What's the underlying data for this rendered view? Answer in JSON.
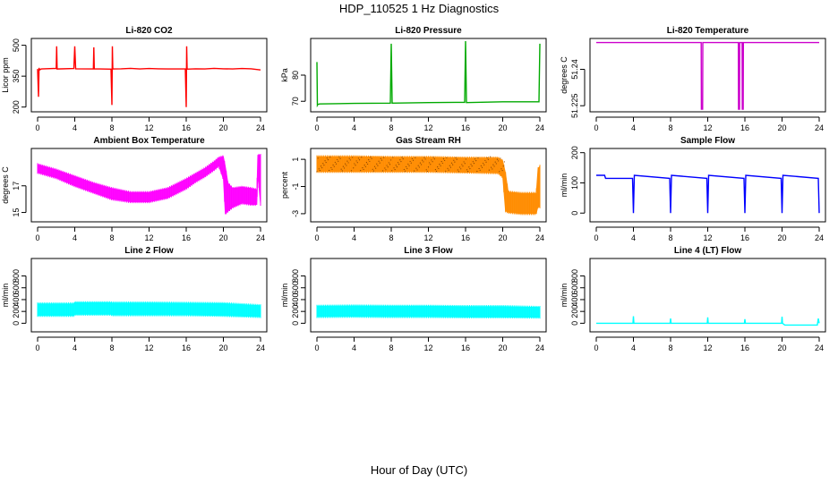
{
  "figure": {
    "title": "HDP_110525  1 Hz Diagnostics",
    "xlabel": "Hour of Day (UTC)"
  },
  "chart_data": [
    {
      "type": "line",
      "title": "Li-820 CO2",
      "xlabel": "",
      "ylabel": "Licor ppm",
      "color": "#ff0000",
      "xlim": [
        0,
        24
      ],
      "xticks": [
        0,
        4,
        8,
        12,
        16,
        20,
        24
      ],
      "ylim": [
        190,
        520
      ],
      "yticks": [
        200,
        350,
        500
      ],
      "series": [
        {
          "name": "CO2",
          "x": [
            0,
            0.1,
            0.15,
            0.2,
            0.4,
            2,
            2.05,
            2.1,
            3.9,
            4,
            4.1,
            6,
            6.05,
            6.1,
            7.9,
            8,
            8.05,
            8.1,
            9,
            10,
            11,
            12,
            13,
            14,
            15.9,
            16,
            16.05,
            16.1,
            17,
            18,
            19,
            20,
            21,
            22,
            23,
            24
          ],
          "y": [
            385,
            250,
            390,
            380,
            385,
            388,
            495,
            385,
            387,
            495,
            386,
            385,
            490,
            386,
            384,
            210,
            495,
            385,
            386,
            388,
            385,
            387,
            386,
            385,
            386,
            200,
            495,
            384,
            386,
            385,
            388,
            386,
            385,
            387,
            386,
            380
          ]
        }
      ]
    },
    {
      "type": "line",
      "title": "Li-820 Pressure",
      "xlabel": "",
      "ylabel": "kPa",
      "color": "#00aa00",
      "xlim": [
        0,
        24
      ],
      "xticks": [
        0,
        4,
        8,
        12,
        16,
        20,
        24
      ],
      "ylim": [
        67,
        93
      ],
      "yticks": [
        70,
        80
      ],
      "series": [
        {
          "name": "Pressure",
          "x": [
            0,
            0.05,
            0.1,
            0.3,
            4,
            7.9,
            8,
            8.1,
            12,
            15.9,
            16,
            16.1,
            20,
            23.9,
            24
          ],
          "y": [
            85,
            68.5,
            68.8,
            69,
            69.2,
            69.3,
            92,
            69.3,
            69.5,
            69.6,
            93,
            69.5,
            69.8,
            69.8,
            92
          ]
        }
      ]
    },
    {
      "type": "line",
      "title": "Li-820 Temperature",
      "xlabel": "",
      "ylabel": "degrees C",
      "color": "#cc00cc",
      "xlim": [
        0,
        24
      ],
      "xticks": [
        0,
        4,
        8,
        12,
        16,
        20,
        24
      ],
      "ylim": [
        51.2236,
        51.2516
      ],
      "yticks": [
        51.225,
        51.24
      ],
      "series": [
        {
          "name": "Temperature",
          "x": [
            0,
            11.3,
            11.32,
            11.45,
            11.47,
            15.3,
            15.32,
            15.42,
            15.44,
            15.7,
            15.72,
            15.82,
            15.84,
            24
          ],
          "y": [
            51.251,
            51.251,
            51.2236,
            51.2236,
            51.251,
            51.251,
            51.2236,
            51.2236,
            51.251,
            51.251,
            51.2236,
            51.2236,
            51.251,
            51.251
          ]
        }
      ]
    },
    {
      "type": "area",
      "title": "Ambient Box Temperature",
      "xlabel": "",
      "ylabel": "degrees C",
      "color": "#ff00ff",
      "xlim": [
        0,
        24
      ],
      "xticks": [
        0,
        4,
        8,
        12,
        16,
        20,
        24
      ],
      "ylim": [
        14.5,
        19.6
      ],
      "yticks": [
        15,
        17
      ],
      "series": [
        {
          "name": "upper",
          "x": [
            0,
            2,
            4,
            6,
            8,
            10,
            12,
            14,
            16,
            17,
            18,
            19,
            19.5,
            20,
            20.2,
            20.5,
            21,
            22,
            23,
            23.6,
            23.7,
            24
          ],
          "y": [
            18.6,
            18.2,
            17.7,
            17.2,
            16.8,
            16.5,
            16.5,
            16.8,
            17.5,
            17.9,
            18.3,
            18.8,
            19.1,
            19.2,
            18.5,
            17.2,
            16.8,
            16.9,
            16.8,
            16.7,
            19.3,
            19.3
          ]
        },
        {
          "name": "lower",
          "x": [
            0,
            2,
            4,
            6,
            8,
            10,
            12,
            14,
            16,
            17,
            18,
            19,
            19.5,
            20,
            20.2,
            20.5,
            21,
            22,
            23,
            23.6,
            23.7,
            24
          ],
          "y": [
            18.0,
            17.6,
            17.0,
            16.5,
            16.0,
            15.8,
            15.8,
            16.1,
            16.8,
            17.3,
            17.7,
            18.2,
            18.5,
            17.5,
            14.9,
            15.1,
            15.4,
            15.7,
            15.6,
            15.6,
            17.8,
            15.6
          ]
        }
      ]
    },
    {
      "type": "area",
      "title": "Gas Stream RH",
      "xlabel": "",
      "ylabel": "percent",
      "color": "#ff8c00",
      "xlim": [
        0,
        24
      ],
      "xticks": [
        0,
        4,
        8,
        12,
        16,
        20,
        24
      ],
      "ylim": [
        -3.4,
        1.6
      ],
      "yticks": [
        -3,
        -1,
        1
      ],
      "series": [
        {
          "name": "upper",
          "x": [
            0,
            4,
            8,
            12,
            16,
            19.5,
            20,
            20.3,
            20.6,
            22,
            23.6,
            23.8,
            24
          ],
          "y": [
            1.2,
            1.2,
            1.15,
            1.15,
            1.1,
            1.1,
            0.9,
            0,
            -1.4,
            -1.5,
            -1.5,
            0.3,
            0.5
          ]
        },
        {
          "name": "lower",
          "x": [
            0,
            4,
            8,
            12,
            16,
            19.5,
            20,
            20.3,
            20.6,
            22,
            23.6,
            23.8,
            24
          ],
          "y": [
            0.1,
            0.1,
            0.1,
            0.1,
            0.05,
            0.0,
            -0.3,
            -2.8,
            -2.9,
            -3.0,
            -3.0,
            -2.5,
            -2.5
          ]
        }
      ]
    },
    {
      "type": "line",
      "title": "Sample Flow",
      "xlabel": "",
      "ylabel": "ml/min",
      "color": "#0000ff",
      "xlim": [
        0,
        24
      ],
      "xticks": [
        0,
        4,
        8,
        12,
        16,
        20,
        24
      ],
      "ylim": [
        -20,
        205
      ],
      "yticks": [
        0,
        100,
        200
      ],
      "series": [
        {
          "name": "Flow",
          "x": [
            0,
            0.9,
            1.0,
            3.9,
            4.0,
            4.1,
            7.9,
            8.0,
            8.1,
            11.9,
            12.0,
            12.1,
            15.9,
            16.0,
            16.1,
            19.9,
            20.0,
            20.1,
            23.9,
            24.0
          ],
          "y": [
            125,
            125,
            115,
            115,
            0,
            125,
            115,
            0,
            125,
            115,
            0,
            125,
            115,
            0,
            125,
            115,
            0,
            125,
            115,
            0
          ]
        }
      ]
    },
    {
      "type": "area",
      "title": "Line 2 Flow",
      "xlabel": "",
      "ylabel": "ml/min",
      "color": "#00ffff",
      "xlim": [
        0,
        24
      ],
      "xticks": [
        0,
        4,
        8,
        12,
        16,
        20,
        24
      ],
      "ylim": [
        -100,
        1050
      ],
      "yticks": [
        0,
        200,
        400,
        600,
        800
      ],
      "series": [
        {
          "name": "upper",
          "x": [
            0,
            3.9,
            4,
            7.9,
            8,
            12,
            16,
            20,
            24
          ],
          "y": [
            330,
            330,
            350,
            350,
            345,
            345,
            340,
            335,
            300
          ]
        },
        {
          "name": "lower",
          "x": [
            0,
            3.9,
            4,
            7.9,
            8,
            12,
            16,
            20,
            24
          ],
          "y": [
            130,
            130,
            150,
            150,
            140,
            140,
            140,
            130,
            110
          ]
        }
      ]
    },
    {
      "type": "area",
      "title": "Line 3 Flow",
      "xlabel": "",
      "ylabel": "ml/min",
      "color": "#00ffff",
      "xlim": [
        0,
        24
      ],
      "xticks": [
        0,
        4,
        8,
        12,
        16,
        20,
        24
      ],
      "ylim": [
        -100,
        1050
      ],
      "yticks": [
        0,
        200,
        400,
        600,
        800
      ],
      "series": [
        {
          "name": "upper",
          "x": [
            0,
            4,
            8,
            12,
            16,
            20,
            24
          ],
          "y": [
            290,
            295,
            290,
            290,
            285,
            285,
            270
          ]
        },
        {
          "name": "lower",
          "x": [
            0,
            4,
            8,
            12,
            16,
            20,
            24
          ],
          "y": [
            110,
            115,
            110,
            110,
            105,
            105,
            100
          ]
        }
      ]
    },
    {
      "type": "line",
      "title": "Line 4 (LT) Flow",
      "xlabel": "",
      "ylabel": "ml/min",
      "color": "#00ffff",
      "xlim": [
        0,
        24
      ],
      "xticks": [
        0,
        4,
        8,
        12,
        16,
        20,
        24
      ],
      "ylim": [
        -100,
        1050
      ],
      "yticks": [
        0,
        200,
        400,
        600,
        800
      ],
      "series": [
        {
          "name": "Flow",
          "x": [
            0,
            3.95,
            4.0,
            4.05,
            7.95,
            8.0,
            8.05,
            11.95,
            12.0,
            12.05,
            15.95,
            16.0,
            16.05,
            19.95,
            20.0,
            20.05,
            20.3,
            23.8,
            23.9,
            24
          ],
          "y": [
            0,
            0,
            120,
            0,
            0,
            80,
            0,
            0,
            100,
            0,
            0,
            70,
            0,
            0,
            110,
            0,
            -30,
            -30,
            80,
            0
          ]
        }
      ]
    }
  ]
}
